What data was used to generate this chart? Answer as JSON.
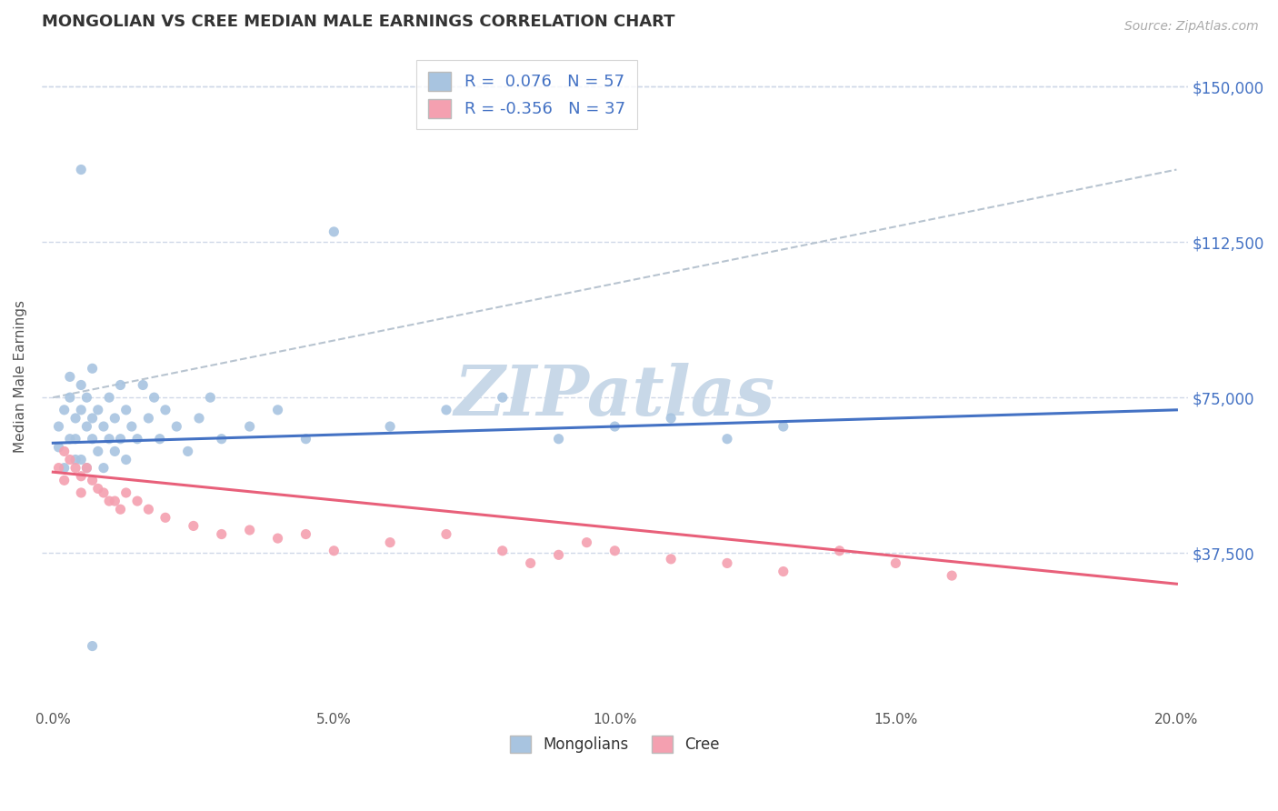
{
  "title": "MONGOLIAN VS CREE MEDIAN MALE EARNINGS CORRELATION CHART",
  "source": "Source: ZipAtlas.com",
  "xlabel": "",
  "ylabel": "Median Male Earnings",
  "xlim": [
    -0.002,
    0.202
  ],
  "ylim": [
    0,
    160000
  ],
  "yticks": [
    37500,
    75000,
    112500,
    150000
  ],
  "ytick_labels": [
    "$37,500",
    "$75,000",
    "$112,500",
    "$150,000"
  ],
  "xticks": [
    0.0,
    0.05,
    0.1,
    0.15,
    0.2
  ],
  "xtick_labels": [
    "0.0%",
    "5.0%",
    "10.0%",
    "15.0%",
    "20.0%"
  ],
  "mongolian_R": 0.076,
  "mongolian_N": 57,
  "cree_R": -0.356,
  "cree_N": 37,
  "mongolian_color": "#a8c4e0",
  "cree_color": "#f4a0b0",
  "mongolian_line_color": "#4472c4",
  "cree_line_color": "#e8607a",
  "grid_color": "#d0d8e8",
  "background_color": "#ffffff",
  "watermark": "ZIPatlas",
  "watermark_color": "#c8d8e8",
  "legend_color": "#4472c4",
  "mongolians_scatter_x": [
    0.001,
    0.001,
    0.002,
    0.002,
    0.003,
    0.003,
    0.003,
    0.004,
    0.004,
    0.004,
    0.005,
    0.005,
    0.005,
    0.006,
    0.006,
    0.006,
    0.007,
    0.007,
    0.007,
    0.008,
    0.008,
    0.009,
    0.009,
    0.01,
    0.01,
    0.011,
    0.011,
    0.012,
    0.012,
    0.013,
    0.013,
    0.014,
    0.015,
    0.016,
    0.017,
    0.018,
    0.019,
    0.02,
    0.022,
    0.024,
    0.026,
    0.028,
    0.03,
    0.035,
    0.04,
    0.045,
    0.05,
    0.06,
    0.07,
    0.08,
    0.09,
    0.1,
    0.11,
    0.12,
    0.13,
    0.005,
    0.007
  ],
  "mongolians_scatter_y": [
    63000,
    68000,
    72000,
    58000,
    75000,
    65000,
    80000,
    70000,
    60000,
    65000,
    78000,
    72000,
    60000,
    68000,
    75000,
    58000,
    82000,
    65000,
    70000,
    72000,
    62000,
    68000,
    58000,
    75000,
    65000,
    70000,
    62000,
    78000,
    65000,
    72000,
    60000,
    68000,
    65000,
    78000,
    70000,
    75000,
    65000,
    72000,
    68000,
    62000,
    70000,
    75000,
    65000,
    68000,
    72000,
    65000,
    115000,
    68000,
    72000,
    75000,
    65000,
    68000,
    70000,
    65000,
    68000,
    130000,
    15000
  ],
  "cree_scatter_x": [
    0.001,
    0.002,
    0.002,
    0.003,
    0.004,
    0.005,
    0.005,
    0.006,
    0.007,
    0.008,
    0.009,
    0.01,
    0.011,
    0.012,
    0.013,
    0.015,
    0.017,
    0.02,
    0.025,
    0.03,
    0.035,
    0.04,
    0.045,
    0.05,
    0.06,
    0.07,
    0.08,
    0.085,
    0.09,
    0.095,
    0.1,
    0.11,
    0.12,
    0.13,
    0.14,
    0.15,
    0.16
  ],
  "cree_scatter_y": [
    58000,
    62000,
    55000,
    60000,
    58000,
    56000,
    52000,
    58000,
    55000,
    53000,
    52000,
    50000,
    50000,
    48000,
    52000,
    50000,
    48000,
    46000,
    44000,
    42000,
    43000,
    41000,
    42000,
    38000,
    40000,
    42000,
    38000,
    35000,
    37000,
    40000,
    38000,
    36000,
    35000,
    33000,
    38000,
    35000,
    32000
  ],
  "mongolian_trend_x": [
    0.0,
    0.2
  ],
  "mongolian_trend_y": [
    64000,
    72000
  ],
  "cree_trend_x": [
    0.0,
    0.2
  ],
  "cree_trend_y": [
    57000,
    30000
  ],
  "dashed_line_x": [
    0.0,
    0.2
  ],
  "dashed_line_y": [
    75000,
    130000
  ],
  "legend_label_mongolian": "R =  0.076   N = 57",
  "legend_label_cree": "R = -0.356   N = 37",
  "bottom_legend_mongolians": "Mongolians",
  "bottom_legend_cree": "Cree"
}
